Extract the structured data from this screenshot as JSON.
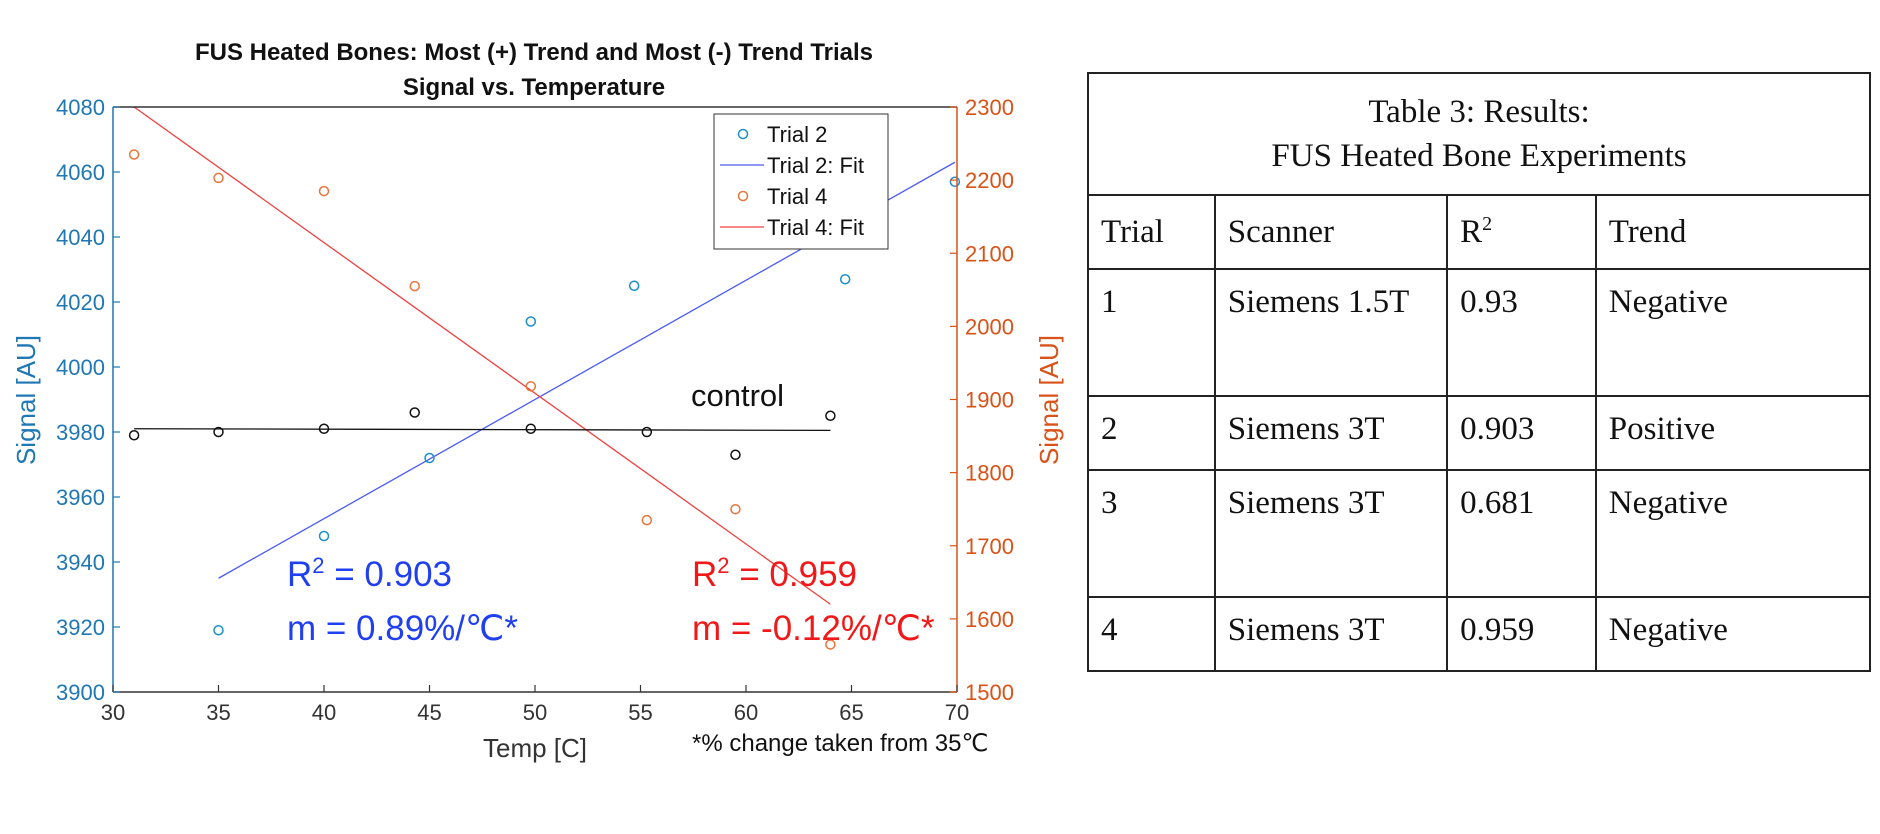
{
  "chart_data": {
    "type": "scatter",
    "title": "FUS Heated Bones: Most (+) Trend and Most (-) Trend Trials",
    "subtitle": "Signal vs. Temperature",
    "xlabel": "Temp [C]",
    "ylabel_left": "Signal [AU]",
    "ylabel_right": "Signal [AU]",
    "xlim": [
      30,
      70
    ],
    "ylim_left": [
      3900,
      4080
    ],
    "ylim_right": [
      1500,
      2300
    ],
    "x_ticks": [
      30,
      35,
      40,
      45,
      50,
      55,
      60,
      65,
      70
    ],
    "y_ticks_left": [
      3900,
      3920,
      3940,
      3960,
      3980,
      4000,
      4020,
      4040,
      4060,
      4080
    ],
    "y_ticks_right": [
      1500,
      1600,
      1700,
      1800,
      1900,
      2000,
      2100,
      2200,
      2300
    ],
    "grid": false,
    "legend_position": "top-right",
    "colors": {
      "left_axis": "#1f77b4",
      "right_axis": "#d95319",
      "trial2": "#1f8fc9",
      "trial2_fit": "#4a5cf0",
      "trial4": "#e8743b",
      "trial4_fit": "#f04040",
      "control": "#111111",
      "annotation_blue": "#1f3ff0",
      "annotation_red": "#f01818"
    },
    "series": [
      {
        "name": "Trial 2",
        "axis": "left",
        "marker": "circle",
        "x": [
          35,
          40,
          45,
          49.8,
          54.7,
          64.7,
          69.9
        ],
        "y": [
          3919,
          3948,
          3972,
          4014,
          4025,
          4027,
          4057
        ]
      },
      {
        "name": "Trial 2: Fit",
        "axis": "left",
        "style": "line",
        "x": [
          35,
          69.9
        ],
        "y": [
          3935,
          4063
        ]
      },
      {
        "name": "Trial 4",
        "axis": "right",
        "marker": "circle",
        "x": [
          31,
          35,
          40,
          44.3,
          49.8,
          55.3,
          59.5,
          64
        ],
        "y": [
          2235,
          2203,
          2185,
          2055,
          1918,
          1735,
          1750,
          1565
        ]
      },
      {
        "name": "Trial 4: Fit",
        "axis": "right",
        "style": "line",
        "x": [
          31,
          64
        ],
        "y": [
          2300,
          1620
        ]
      },
      {
        "axis": "left",
        "marker": "circle",
        "x": [
          31,
          35,
          40,
          44.3,
          49.8,
          55.3,
          59.5,
          64
        ],
        "y": [
          3979,
          3980,
          3981,
          3986,
          3981,
          3980,
          3973,
          3985
        ]
      },
      {
        "axis": "left",
        "style": "line",
        "x": [
          31,
          64
        ],
        "y": [
          3981,
          3980.5
        ]
      }
    ],
    "legend": [
      "Trial 2",
      "Trial 2: Fit",
      "Trial 4",
      "Trial 4: Fit"
    ],
    "annotations": {
      "control_label": "control",
      "trial2_r2_prefix": "R",
      "trial2_r2_value": " = 0.903",
      "trial2_slope": "m = 0.89%/℃*",
      "trial4_r2_prefix": "R",
      "trial4_r2_value": " = 0.959",
      "trial4_slope": "m = -0.12%/℃*",
      "r2_exponent": "2",
      "footnote": "*% change taken from 35℃"
    }
  },
  "table": {
    "caption_line1": "Table 3:  Results:",
    "caption_line2": "FUS Heated Bone Experiments",
    "headers": {
      "trial": "Trial",
      "scanner": "Scanner",
      "r2_base": "R",
      "r2_sup": "2",
      "trend": "Trend"
    },
    "rows": [
      {
        "trial": "1",
        "scanner": "Siemens 1.5T",
        "r2": "0.93",
        "trend": "Negative"
      },
      {
        "trial": "2",
        "scanner": "Siemens 3T",
        "r2": "0.903",
        "trend": "Positive"
      },
      {
        "trial": "3",
        "scanner": "Siemens 3T",
        "r2": "0.681",
        "trend": "Negative"
      },
      {
        "trial": "4",
        "scanner": "Siemens 3T",
        "r2": "0.959",
        "trend": "Negative"
      }
    ]
  }
}
